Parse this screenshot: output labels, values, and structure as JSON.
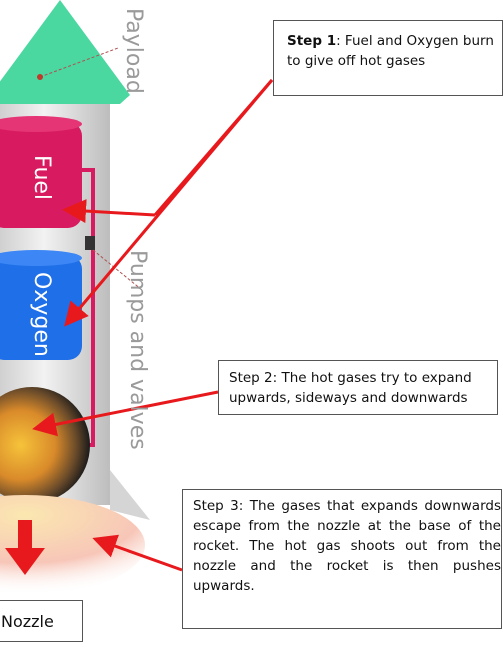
{
  "labels": {
    "payload": "Payload",
    "pumps": "Pumps and valves",
    "fuel": "Fuel",
    "oxygen": "Oxygen",
    "nozzle": "Nozzle"
  },
  "steps": {
    "step1": {
      "bold": "Step 1",
      "text": ": Fuel and Oxygen burn to give off hot gases"
    },
    "step2": {
      "text": "Step 2: The hot gases try to expand upwards, sideways and downwards"
    },
    "step3": {
      "text": "Step 3: The gases that expands downwards escape from the nozzle at the base of the rocket. The hot gas shoots out from the nozzle and the rocket is then pushes upwards."
    }
  },
  "colors": {
    "payload": "#4ad8a0",
    "fuel": "#d81b60",
    "oxygen": "#1f6fe8",
    "pipe": "#d81b60",
    "arrows": "#e8191d",
    "body": "#dcdcdc"
  }
}
